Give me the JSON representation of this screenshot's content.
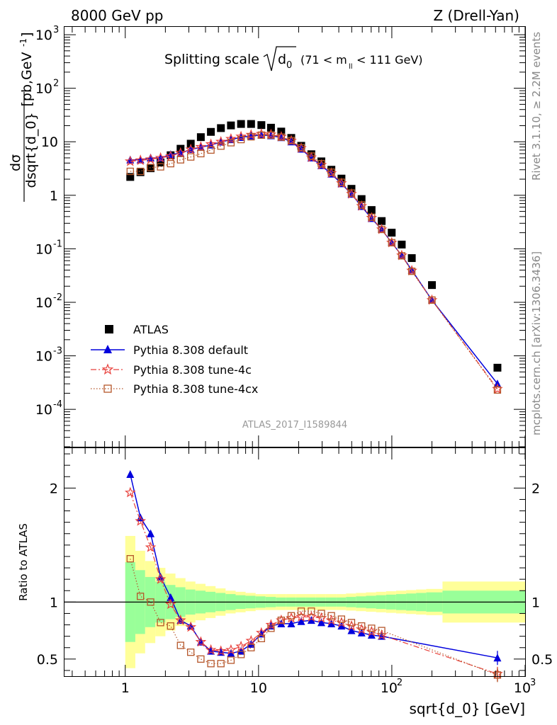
{
  "header": {
    "left": "8000 GeV pp",
    "right": "Z (Drell-Yan)"
  },
  "side_labels": {
    "rivet": "Rivet 3.1.10, ≥ 2.2M events",
    "mcplots": "mcplots.cern.ch [arXiv:1306.3436]"
  },
  "watermark": "ATLAS_2017_I1589844",
  "colors": {
    "atlas": "#000000",
    "default": "#0000dd",
    "tune4c": "#e8413c",
    "tune4cx": "#b5562a",
    "band_inner": "#99ff99",
    "band_outer": "#ffff99"
  },
  "chart_data": [
    {
      "type": "scatter",
      "title": "Splitting scale √d₀ (71 < mₗₗ < 111 GeV)",
      "title_parts": {
        "main": "Splitting scale",
        "sym": "d",
        "sub0": "0",
        "range": "(71 < m",
        "sub_ll": "ll",
        "range_end": "< 111 GeV)"
      },
      "ylabel_num": "dσ",
      "ylabel_den": "dsqrt{d_0}",
      "ylabel_units": "[pb,GeV",
      "ylabel_units_sup": "-1",
      "ylabel_units_end": "]",
      "xscale": "log",
      "yscale": "log",
      "xlim": [
        0.35,
        1000
      ],
      "ylim": [
        2e-05,
        1400
      ],
      "yticks": [
        {
          "base": "10",
          "exp": "-4",
          "value": 0.0001
        },
        {
          "base": "10",
          "exp": "-3",
          "value": 0.001
        },
        {
          "base": "10",
          "exp": "-2",
          "value": 0.01
        },
        {
          "base": "10",
          "exp": "-1",
          "value": 0.1
        },
        {
          "base": "1",
          "exp": "",
          "value": 1
        },
        {
          "base": "10",
          "exp": "",
          "value": 10
        },
        {
          "base": "10",
          "exp": "2",
          "value": 100
        },
        {
          "base": "10",
          "exp": "3",
          "value": 1000
        }
      ],
      "legend": [
        {
          "label": "ATLAS",
          "marker": "square",
          "color": "#000000",
          "line": "none"
        },
        {
          "label": "Pythia 8.308 default",
          "marker": "triangle",
          "color": "#0000dd",
          "line": "solid"
        },
        {
          "label": "Pythia 8.308 tune-4c",
          "marker": "star",
          "color": "#e8413c",
          "line": "dashdot"
        },
        {
          "label": "Pythia 8.308 tune-4cx",
          "marker": "opensquare",
          "color": "#b5562a",
          "line": "dotted"
        }
      ],
      "legend_position": "lower-left",
      "x": [
        1.09,
        1.3,
        1.55,
        1.84,
        2.19,
        2.6,
        3.1,
        3.69,
        4.39,
        5.22,
        6.21,
        7.39,
        8.79,
        10.5,
        12.4,
        14.8,
        17.6,
        20.9,
        24.9,
        29.6,
        35.2,
        41.9,
        49.8,
        59.3,
        70.5,
        83.9,
        99.8,
        118.7,
        141.2,
        200,
        620
      ],
      "series": [
        {
          "name": "ATLAS",
          "values": [
            2.2,
            2.7,
            3.2,
            4.1,
            5.6,
            7.4,
            9.2,
            12.2,
            15.3,
            18.0,
            20.2,
            21.5,
            21.5,
            20.5,
            18.3,
            15.5,
            11.8,
            8.4,
            5.85,
            4.3,
            3.0,
            2.05,
            1.32,
            0.85,
            0.53,
            0.33,
            0.2,
            0.12,
            0.067,
            0.021,
            0.0006
          ]
        },
        {
          "name": "Pythia 8.308 default",
          "values": [
            4.6,
            4.6,
            5.0,
            5.0,
            5.8,
            6.1,
            7.2,
            7.9,
            8.7,
            9.9,
            11.0,
            12.1,
            12.9,
            13.3,
            13.0,
            12.0,
            10.0,
            7.3,
            5.0,
            3.6,
            2.5,
            1.65,
            1.05,
            0.62,
            0.37,
            0.23,
            0.13,
            0.075,
            0.04,
            0.011,
            0.0003
          ]
        },
        {
          "name": "Pythia 8.308 tune-4c",
          "values": [
            4.3,
            4.5,
            4.7,
            5.0,
            5.4,
            6.2,
            7.2,
            8.0,
            9.0,
            10.0,
            11.3,
            12.5,
            13.5,
            14.0,
            13.7,
            12.4,
            10.5,
            7.6,
            5.1,
            3.7,
            2.6,
            1.68,
            1.06,
            0.63,
            0.38,
            0.23,
            0.13,
            0.075,
            0.039,
            0.011,
            0.00024
          ]
        },
        {
          "name": "Pythia 8.308 tune-4cx",
          "values": [
            2.8,
            2.8,
            3.3,
            3.4,
            3.9,
            4.6,
            5.2,
            6.0,
            7.0,
            8.3,
            9.6,
            11.0,
            12.4,
            13.3,
            13.3,
            12.2,
            10.5,
            7.7,
            5.4,
            3.9,
            2.7,
            1.75,
            1.1,
            0.66,
            0.39,
            0.23,
            0.13,
            0.074,
            0.038,
            0.011,
            0.00023
          ]
        }
      ]
    },
    {
      "type": "line",
      "ylabel": "Ratio to ATLAS",
      "xlabel": "sqrt{d_0} [GeV]",
      "xscale": "log",
      "xlim": [
        0.35,
        1000
      ],
      "ylim": [
        0.35,
        2.35
      ],
      "yticks": [
        0.5,
        1,
        2
      ],
      "ytick_labels": [
        "0.5",
        "1",
        "2"
      ],
      "xtick_labels": [
        {
          "base": "1",
          "exp": "",
          "value": 1
        },
        {
          "base": "10",
          "exp": "",
          "value": 10
        },
        {
          "base": "10",
          "exp": "2",
          "value": 100
        },
        {
          "base": "10",
          "exp": "3",
          "value": 1000
        }
      ],
      "x": [
        1.09,
        1.3,
        1.55,
        1.84,
        2.19,
        2.6,
        3.1,
        3.69,
        4.39,
        5.22,
        6.21,
        7.39,
        8.79,
        10.5,
        12.4,
        14.8,
        17.6,
        20.9,
        24.9,
        29.6,
        35.2,
        41.9,
        49.8,
        59.3,
        70.5,
        83.9,
        620
      ],
      "band_edges": [
        1.0,
        1.19,
        1.41,
        1.68,
        2.0,
        2.38,
        2.83,
        3.36,
        4.0,
        4.76,
        5.66,
        6.73,
        8.0,
        9.51,
        11.3,
        13.5,
        16.0,
        19.0,
        22.6,
        26.9,
        32.0,
        38.1,
        45.3,
        53.8,
        64.0,
        76.1,
        90.5,
        107.6,
        128,
        152,
        181,
        240,
        1000
      ],
      "band_inner_half": [
        0.35,
        0.28,
        0.22,
        0.18,
        0.15,
        0.13,
        0.11,
        0.1,
        0.09,
        0.08,
        0.07,
        0.06,
        0.055,
        0.05,
        0.045,
        0.04,
        0.04,
        0.04,
        0.04,
        0.04,
        0.04,
        0.04,
        0.045,
        0.05,
        0.055,
        0.06,
        0.065,
        0.07,
        0.075,
        0.08,
        0.085,
        0.1
      ],
      "band_outer_half": [
        0.58,
        0.45,
        0.36,
        0.3,
        0.25,
        0.21,
        0.18,
        0.16,
        0.14,
        0.12,
        0.1,
        0.09,
        0.08,
        0.07,
        0.07,
        0.07,
        0.07,
        0.07,
        0.07,
        0.07,
        0.07,
        0.07,
        0.075,
        0.08,
        0.085,
        0.09,
        0.095,
        0.1,
        0.105,
        0.11,
        0.115,
        0.18
      ],
      "series": [
        {
          "name": "Pythia 8.308 default",
          "values": [
            2.12,
            1.74,
            1.6,
            1.22,
            1.04,
            0.84,
            0.79,
            0.65,
            0.57,
            0.56,
            0.55,
            0.57,
            0.63,
            0.72,
            0.79,
            0.81,
            0.81,
            0.83,
            0.84,
            0.82,
            0.81,
            0.79,
            0.75,
            0.73,
            0.71,
            0.7,
            0.51
          ]
        },
        {
          "name": "Pythia 8.308 tune-4c",
          "values": [
            1.96,
            1.71,
            1.48,
            1.2,
            0.98,
            0.84,
            0.78,
            0.65,
            0.58,
            0.57,
            0.58,
            0.61,
            0.66,
            0.73,
            0.8,
            0.84,
            0.86,
            0.87,
            0.87,
            0.86,
            0.84,
            0.82,
            0.79,
            0.76,
            0.74,
            0.71,
            0.37
          ]
        },
        {
          "name": "Pythia 8.308 tune-4cx",
          "values": [
            1.38,
            1.05,
            1.0,
            0.82,
            0.79,
            0.62,
            0.56,
            0.5,
            0.46,
            0.46,
            0.49,
            0.54,
            0.6,
            0.68,
            0.77,
            0.84,
            0.88,
            0.92,
            0.92,
            0.9,
            0.88,
            0.85,
            0.82,
            0.79,
            0.77,
            0.75,
            0.36
          ]
        }
      ]
    }
  ]
}
